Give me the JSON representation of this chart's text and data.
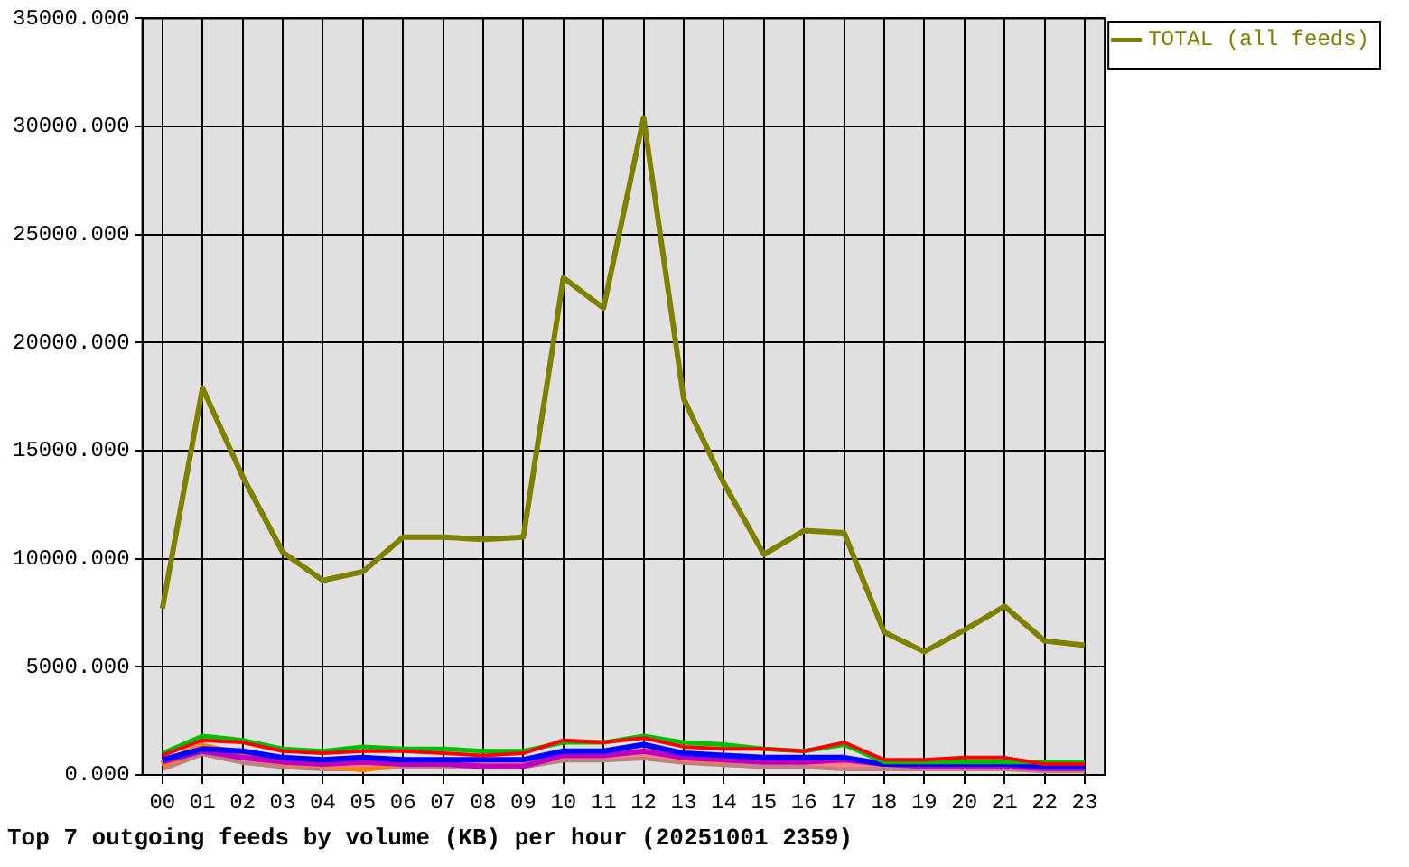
{
  "chart_data": {
    "type": "line",
    "title": "Top 7 outgoing feeds by volume (KB) per hour (20251001 2359)",
    "categories": [
      "00",
      "01",
      "02",
      "03",
      "04",
      "05",
      "06",
      "07",
      "08",
      "09",
      "10",
      "11",
      "12",
      "13",
      "14",
      "15",
      "16",
      "17",
      "18",
      "19",
      "20",
      "21",
      "22",
      "23"
    ],
    "ylim": [
      0,
      35000
    ],
    "yticks": [
      {
        "value": 0,
        "label": "0.000"
      },
      {
        "value": 5000,
        "label": "5000.000"
      },
      {
        "value": 10000,
        "label": "10000.000"
      },
      {
        "value": 15000,
        "label": "15000.000"
      },
      {
        "value": 20000,
        "label": "20000.000"
      },
      {
        "value": 25000,
        "label": "25000.000"
      },
      {
        "value": 30000,
        "label": "30000.000"
      },
      {
        "value": 35000,
        "label": "35000.000"
      }
    ],
    "grid": true,
    "legend": "right",
    "marker": "none",
    "line_style": "solid",
    "series": [
      {
        "color": "#ff0000",
        "values": [
          900,
          1600,
          1500,
          1100,
          1000,
          1100,
          1100,
          1000,
          900,
          1000,
          1600,
          1500,
          1700,
          1300,
          1200,
          1200,
          1100,
          1500,
          700,
          700,
          800,
          800,
          500,
          500
        ]
      },
      {
        "color": "#00c000",
        "values": [
          1000,
          1800,
          1600,
          1200,
          1100,
          1300,
          1200,
          1200,
          1100,
          1100,
          1500,
          1500,
          1800,
          1500,
          1400,
          1200,
          1100,
          1400,
          600,
          600,
          600,
          600,
          600,
          600
        ]
      },
      {
        "color": "#0000ff",
        "values": [
          700,
          1200,
          1100,
          800,
          700,
          800,
          700,
          700,
          700,
          700,
          1100,
          1100,
          1400,
          1000,
          900,
          800,
          800,
          800,
          500,
          500,
          500,
          500,
          400,
          400
        ]
      },
      {
        "color": "#c000c0",
        "values": [
          600,
          1100,
          800,
          600,
          500,
          600,
          500,
          500,
          400,
          400,
          900,
          900,
          1100,
          800,
          700,
          600,
          600,
          700,
          500,
          400,
          400,
          400,
          300,
          300
        ]
      },
      {
        "color": "#ff8080",
        "values": [
          600,
          1200,
          800,
          600,
          500,
          500,
          600,
          600,
          600,
          600,
          900,
          900,
          1000,
          800,
          700,
          600,
          600,
          500,
          500,
          500,
          null,
          null,
          null,
          null
        ]
      },
      {
        "color": "#ff8000",
        "values": [
          500,
          1300,
          900,
          600,
          500,
          300,
          600,
          null,
          null,
          null,
          null,
          null,
          1100,
          800,
          700,
          null,
          null,
          null,
          null,
          null,
          null,
          null,
          null,
          null
        ]
      },
      {
        "color": "#c08080",
        "values": [
          400,
          1100,
          700,
          500,
          400,
          400,
          500,
          500,
          500,
          500,
          800,
          800,
          900,
          700,
          600,
          500,
          500,
          400,
          400,
          400,
          400,
          400,
          300,
          300
        ]
      },
      {
        "name": "TOTAL (all feeds)",
        "color": "#808000",
        "values": [
          7700,
          17900,
          13800,
          10300,
          9000,
          9400,
          11000,
          11000,
          10900,
          11000,
          23000,
          21600,
          30400,
          17400,
          13500,
          10200,
          11300,
          11200,
          6600,
          5700,
          6700,
          7800,
          6200,
          6000
        ]
      }
    ]
  }
}
